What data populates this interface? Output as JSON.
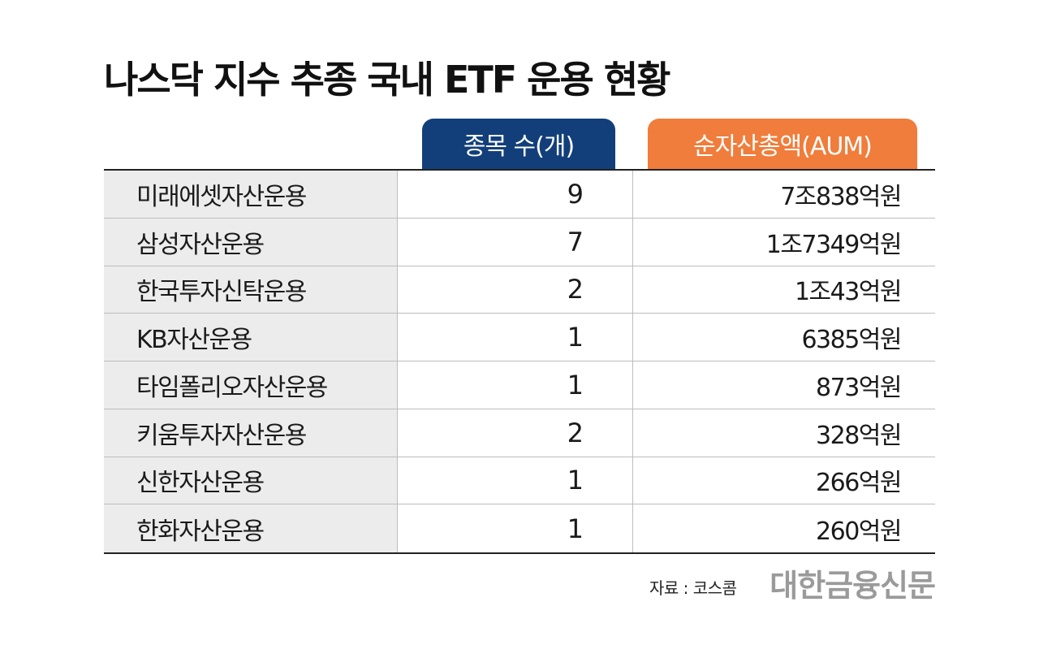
{
  "title": "나스닥 지수 추종 국내 ETF 운용 현황",
  "headers": {
    "count": "종목 수(개)",
    "aum": "순자산총액(AUM)"
  },
  "colors": {
    "count_header": "#123f7a",
    "aum_header": "#f07d3b",
    "name_column_bg": "#ececec"
  },
  "rows": [
    {
      "name": "미래에셋자산운용",
      "count": "9",
      "aum": "7조838억원"
    },
    {
      "name": "삼성자산운용",
      "count": "7",
      "aum": "1조7349억원"
    },
    {
      "name": "한국투자신탁운용",
      "count": "2",
      "aum": "1조43억원"
    },
    {
      "name": "KB자산운용",
      "count": "1",
      "aum": "6385억원"
    },
    {
      "name": "타임폴리오자산운용",
      "count": "1",
      "aum": "873억원"
    },
    {
      "name": "키움투자자산운용",
      "count": "2",
      "aum": "328억원"
    },
    {
      "name": "신한자산운용",
      "count": "1",
      "aum": "266억원"
    },
    {
      "name": "한화자산운용",
      "count": "1",
      "aum": "260억원"
    }
  ],
  "source": "자료 : 코스콤",
  "logo": "대한금융신문"
}
